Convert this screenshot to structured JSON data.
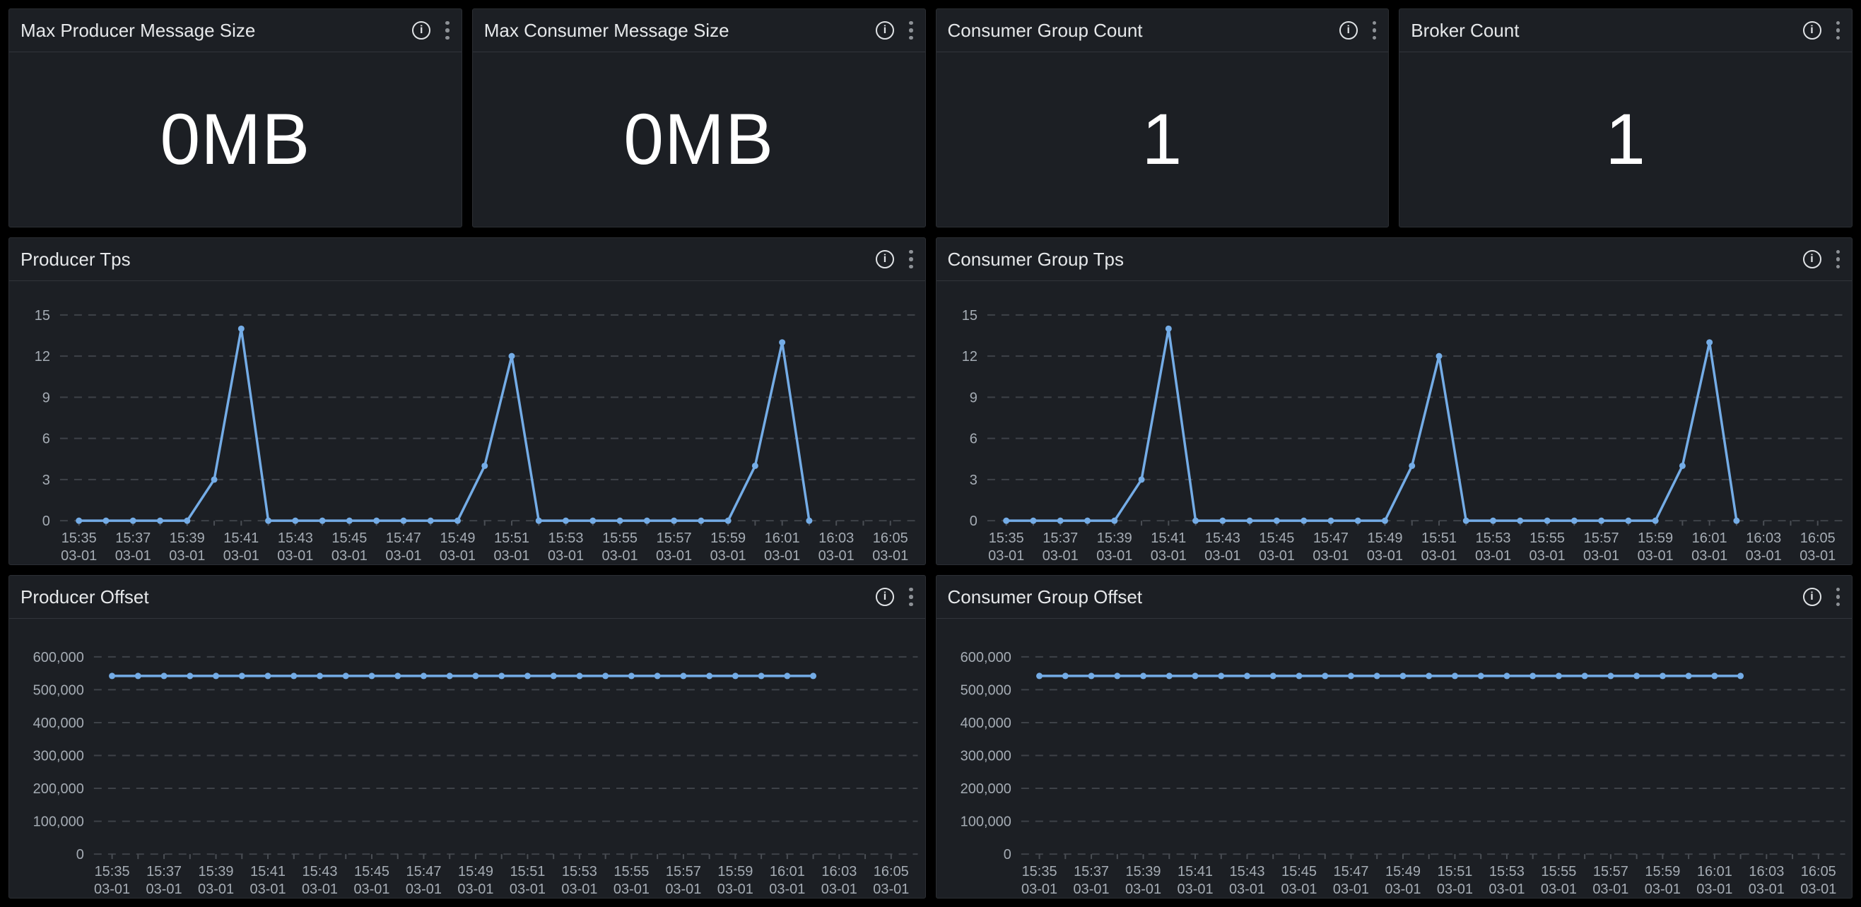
{
  "colors": {
    "page_bg": "#000000",
    "panel_bg": "#1c1f24",
    "panel_border": "#2b2e33",
    "header_divider": "#32353b",
    "grid": "#3e4248",
    "axis_text": "#a5acb4",
    "title_text": "#e6e8ea",
    "value_text": "#ffffff",
    "series_blue": "#74ace6",
    "kebab_dot": "#8d9196"
  },
  "icons": {
    "info": {
      "name": "info-icon",
      "glyph": "i"
    },
    "kebab": {
      "name": "kebab-menu-icon",
      "glyph": "⋮"
    }
  },
  "stat_panels": [
    {
      "title": "Max Producer Message Size",
      "value": "0MB"
    },
    {
      "title": "Max Consumer Message Size",
      "value": "0MB"
    },
    {
      "title": "Consumer Group Count",
      "value": "1"
    },
    {
      "title": "Broker Count",
      "value": "1"
    }
  ],
  "chart_data": [
    {
      "type": "line",
      "title": "Producer Tps",
      "x": [
        "15:35",
        "15:36",
        "15:37",
        "15:38",
        "15:39",
        "15:40",
        "15:41",
        "15:42",
        "15:43",
        "15:44",
        "15:45",
        "15:46",
        "15:47",
        "15:48",
        "15:49",
        "15:50",
        "15:51",
        "15:52",
        "15:53",
        "15:54",
        "15:55",
        "15:56",
        "15:57",
        "15:58",
        "15:59",
        "16:00",
        "16:01",
        "16:02"
      ],
      "values": [
        0,
        0,
        0,
        0,
        0,
        3,
        14,
        0,
        0,
        0,
        0,
        0,
        0,
        0,
        0,
        4,
        12,
        0,
        0,
        0,
        0,
        0,
        0,
        0,
        0,
        4,
        13,
        0
      ],
      "x_tick_labels": [
        "15:35",
        "15:37",
        "15:39",
        "15:41",
        "15:43",
        "15:45",
        "15:47",
        "15:49",
        "15:51",
        "15:53",
        "15:55",
        "15:57",
        "15:59",
        "16:01",
        "16:03",
        "16:05"
      ],
      "date_label": "03-01",
      "y_ticks": [
        0,
        3,
        6,
        9,
        12,
        15
      ],
      "ylim": [
        0,
        15
      ],
      "grid": "dashed-horizontal",
      "legend": "none",
      "markers": true,
      "line_color": "#74ace6"
    },
    {
      "type": "line",
      "title": "Consumer Group Tps",
      "x": [
        "15:35",
        "15:36",
        "15:37",
        "15:38",
        "15:39",
        "15:40",
        "15:41",
        "15:42",
        "15:43",
        "15:44",
        "15:45",
        "15:46",
        "15:47",
        "15:48",
        "15:49",
        "15:50",
        "15:51",
        "15:52",
        "15:53",
        "15:54",
        "15:55",
        "15:56",
        "15:57",
        "15:58",
        "15:59",
        "16:00",
        "16:01",
        "16:02"
      ],
      "values": [
        0,
        0,
        0,
        0,
        0,
        3,
        14,
        0,
        0,
        0,
        0,
        0,
        0,
        0,
        0,
        4,
        12,
        0,
        0,
        0,
        0,
        0,
        0,
        0,
        0,
        4,
        13,
        0
      ],
      "x_tick_labels": [
        "15:35",
        "15:37",
        "15:39",
        "15:41",
        "15:43",
        "15:45",
        "15:47",
        "15:49",
        "15:51",
        "15:53",
        "15:55",
        "15:57",
        "15:59",
        "16:01",
        "16:03",
        "16:05"
      ],
      "date_label": "03-01",
      "y_ticks": [
        0,
        3,
        6,
        9,
        12,
        15
      ],
      "ylim": [
        0,
        15
      ],
      "grid": "dashed-horizontal",
      "legend": "none",
      "markers": true,
      "line_color": "#74ace6"
    },
    {
      "type": "line",
      "title": "Producer Offset",
      "x": [
        "15:35",
        "15:36",
        "15:37",
        "15:38",
        "15:39",
        "15:40",
        "15:41",
        "15:42",
        "15:43",
        "15:44",
        "15:45",
        "15:46",
        "15:47",
        "15:48",
        "15:49",
        "15:50",
        "15:51",
        "15:52",
        "15:53",
        "15:54",
        "15:55",
        "15:56",
        "15:57",
        "15:58",
        "15:59",
        "16:00",
        "16:01",
        "16:02"
      ],
      "values": [
        542000,
        542000,
        542000,
        542000,
        542000,
        542000,
        542000,
        542000,
        542000,
        542000,
        542000,
        542000,
        542000,
        542000,
        542000,
        542000,
        542000,
        542000,
        542000,
        542000,
        542000,
        542000,
        542000,
        542000,
        542000,
        542000,
        542000,
        542000
      ],
      "x_tick_labels": [
        "15:35",
        "15:37",
        "15:39",
        "15:41",
        "15:43",
        "15:45",
        "15:47",
        "15:49",
        "15:51",
        "15:53",
        "15:55",
        "15:57",
        "15:59",
        "16:01",
        "16:03",
        "16:05"
      ],
      "date_label": "03-01",
      "y_ticks": [
        0,
        100000,
        200000,
        300000,
        400000,
        500000,
        600000
      ],
      "ylim": [
        0,
        600000
      ],
      "grid": "dashed-horizontal",
      "legend": "none",
      "markers": true,
      "line_color": "#74ace6"
    },
    {
      "type": "line",
      "title": "Consumer Group Offset",
      "x": [
        "15:35",
        "15:36",
        "15:37",
        "15:38",
        "15:39",
        "15:40",
        "15:41",
        "15:42",
        "15:43",
        "15:44",
        "15:45",
        "15:46",
        "15:47",
        "15:48",
        "15:49",
        "15:50",
        "15:51",
        "15:52",
        "15:53",
        "15:54",
        "15:55",
        "15:56",
        "15:57",
        "15:58",
        "15:59",
        "16:00",
        "16:01",
        "16:02"
      ],
      "values": [
        542000,
        542000,
        542000,
        542000,
        542000,
        542000,
        542000,
        542000,
        542000,
        542000,
        542000,
        542000,
        542000,
        542000,
        542000,
        542000,
        542000,
        542000,
        542000,
        542000,
        542000,
        542000,
        542000,
        542000,
        542000,
        542000,
        542000,
        542000
      ],
      "x_tick_labels": [
        "15:35",
        "15:37",
        "15:39",
        "15:41",
        "15:43",
        "15:45",
        "15:47",
        "15:49",
        "15:51",
        "15:53",
        "15:55",
        "15:57",
        "15:59",
        "16:01",
        "16:03",
        "16:05"
      ],
      "date_label": "03-01",
      "y_ticks": [
        0,
        100000,
        200000,
        300000,
        400000,
        500000,
        600000
      ],
      "ylim": [
        0,
        600000
      ],
      "grid": "dashed-horizontal",
      "legend": "none",
      "markers": true,
      "line_color": "#74ace6"
    }
  ]
}
